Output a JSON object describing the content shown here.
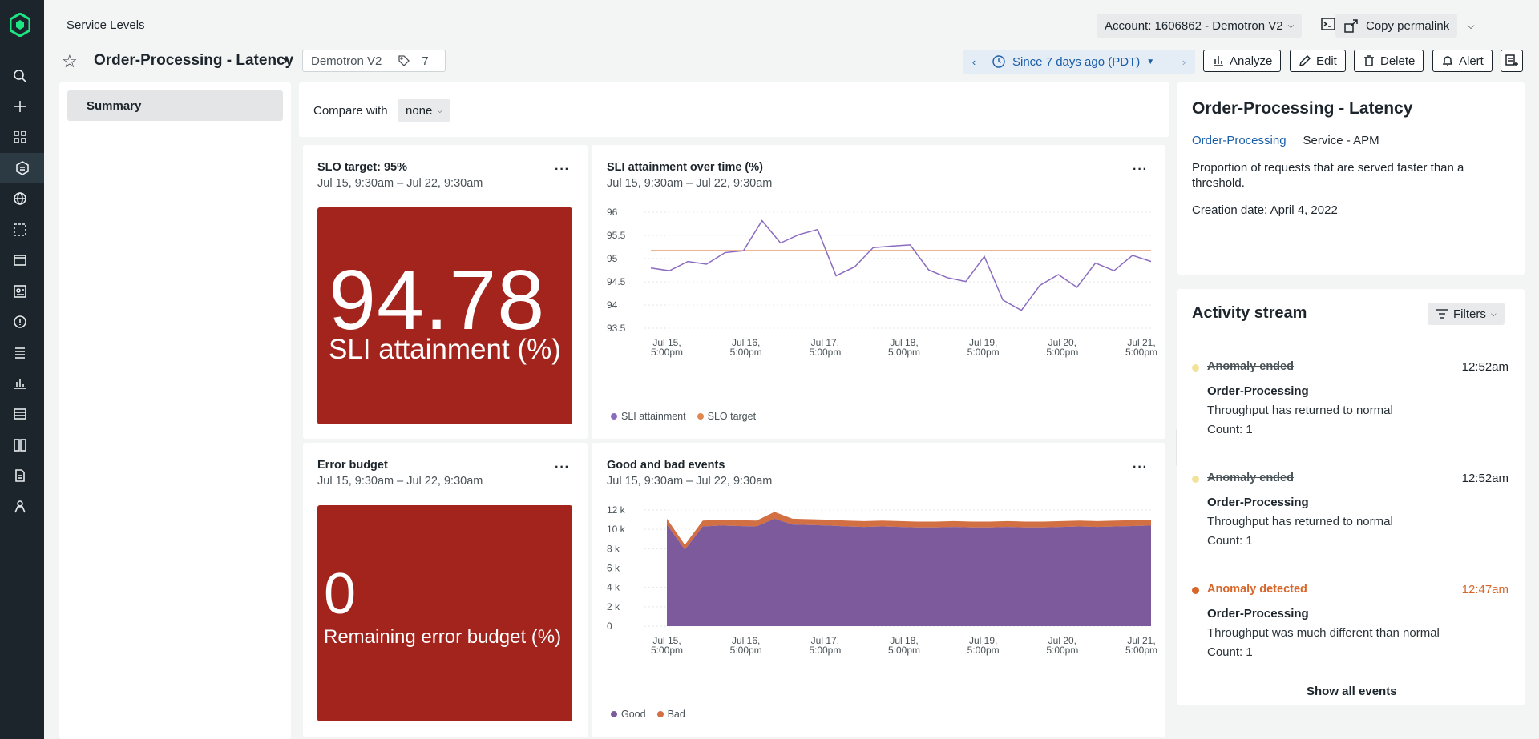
{
  "header": {
    "breadcrumb": "Service Levels",
    "account": "Account: 1606862 - Demotron V2",
    "copy_permalink": "Copy permalink"
  },
  "titlebar": {
    "title": "Order-Processing - Latency",
    "account_tag": "Demotron V2",
    "tag_count": "7",
    "time_range": "Since 7 days ago (PDT)",
    "buttons": {
      "analyze": "Analyze",
      "edit": "Edit",
      "delete": "Delete",
      "alert": "Alert"
    }
  },
  "sidebar": {
    "summary": "Summary"
  },
  "compare": {
    "label": "Compare with",
    "value": "none"
  },
  "widgets": {
    "slo": {
      "title": "SLO target: 95%",
      "range": "Jul 15, 9:30am – Jul 22, 9:30am",
      "value": "94.78",
      "label": "SLI attainment (%)"
    },
    "sli_chart": {
      "title": "SLI attainment over time (%)",
      "range": "Jul 15, 9:30am – Jul 22, 9:30am",
      "legend": [
        "SLI attainment",
        "SLO target"
      ]
    },
    "error_budget": {
      "title": "Error budget",
      "range": "Jul 15, 9:30am – Jul 22, 9:30am",
      "value": "0",
      "label": "Remaining error budget (%)"
    },
    "events_chart": {
      "title": "Good and bad events",
      "range": "Jul 15, 9:30am – Jul 22, 9:30am",
      "legend": [
        "Good",
        "Bad"
      ]
    }
  },
  "details": {
    "title": "Order-Processing - Latency",
    "entity_link": "Order-Processing",
    "entity_type": "Service - APM",
    "description": "Proportion of requests that are served faster than a threshold.",
    "creation_date": "Creation date: April 4, 2022"
  },
  "activity": {
    "title": "Activity stream",
    "filters": "Filters",
    "events": [
      {
        "head": "Anomaly ended",
        "time": "12:52am",
        "entity": "Order-Processing",
        "message": "Throughput has returned to normal",
        "count": "Count: 1",
        "kind": "ended"
      },
      {
        "head": "Anomaly ended",
        "time": "12:52am",
        "entity": "Order-Processing",
        "message": "Throughput has returned to normal",
        "count": "Count: 1",
        "kind": "ended"
      },
      {
        "head": "Anomaly detected",
        "time": "12:47am",
        "entity": "Order-Processing",
        "message": "Throughput was much different than normal",
        "count": "Count: 1",
        "kind": "detected"
      }
    ],
    "show_all": "Show all events"
  },
  "colors": {
    "accent": "#1a5ea8",
    "tile_red": "#a3241c",
    "sli_line": "#8b6bbf",
    "slo_line": "#e08850",
    "good_fill": "#7d5a9c",
    "bad_fill": "#d26f43",
    "warn": "#d8662a"
  },
  "chart_data": [
    {
      "type": "line",
      "title": "SLI attainment over time (%)",
      "x_ticks": [
        "Jul 15, 5:00pm",
        "Jul 16, 5:00pm",
        "Jul 17, 5:00pm",
        "Jul 18, 5:00pm",
        "Jul 19, 5:00pm",
        "Jul 20, 5:00pm",
        "Jul 21, 5:00pm"
      ],
      "y_ticks": [
        "96",
        "95.5",
        "95",
        "94.5",
        "94",
        "93.5"
      ],
      "ylim": [
        93.1,
        96.0
      ],
      "series": [
        {
          "name": "SLI attainment",
          "values": [
            94.55,
            94.48,
            94.72,
            94.65,
            94.95,
            95.0,
            95.78,
            95.2,
            95.42,
            95.55,
            94.35,
            94.58,
            95.08,
            95.12,
            95.15,
            94.5,
            94.3,
            94.2,
            94.85,
            93.72,
            93.45,
            94.1,
            94.38,
            94.05,
            94.68,
            94.48,
            94.88,
            94.72
          ]
        },
        {
          "name": "SLO target",
          "values": [
            95.0,
            95.0
          ]
        }
      ]
    },
    {
      "type": "area",
      "title": "Good and bad events",
      "x_ticks": [
        "Jul 15, 5:00pm",
        "Jul 16, 5:00pm",
        "Jul 17, 5:00pm",
        "Jul 18, 5:00pm",
        "Jul 19, 5:00pm",
        "Jul 20, 5:00pm",
        "Jul 21, 5:00pm"
      ],
      "y_ticks": [
        "12 k",
        "10 k",
        "8 k",
        "6 k",
        "4 k",
        "2 k",
        "0"
      ],
      "ylim": [
        0,
        12000
      ],
      "series": [
        {
          "name": "Good",
          "values": [
            10500,
            7900,
            10300,
            10400,
            10350,
            10300,
            11100,
            10500,
            10450,
            10400,
            10300,
            10250,
            10300,
            10250,
            10200,
            10200,
            10250,
            10200,
            10200,
            10250,
            10200,
            10200,
            10250,
            10300,
            10250,
            10300,
            10350,
            10400
          ]
        },
        {
          "name": "Bad",
          "values": [
            600,
            500,
            600,
            600,
            600,
            600,
            700,
            600,
            600,
            600,
            600,
            600,
            600,
            600,
            600,
            600,
            600,
            600,
            600,
            600,
            600,
            600,
            600,
            600,
            600,
            600,
            600,
            600
          ]
        }
      ]
    }
  ]
}
